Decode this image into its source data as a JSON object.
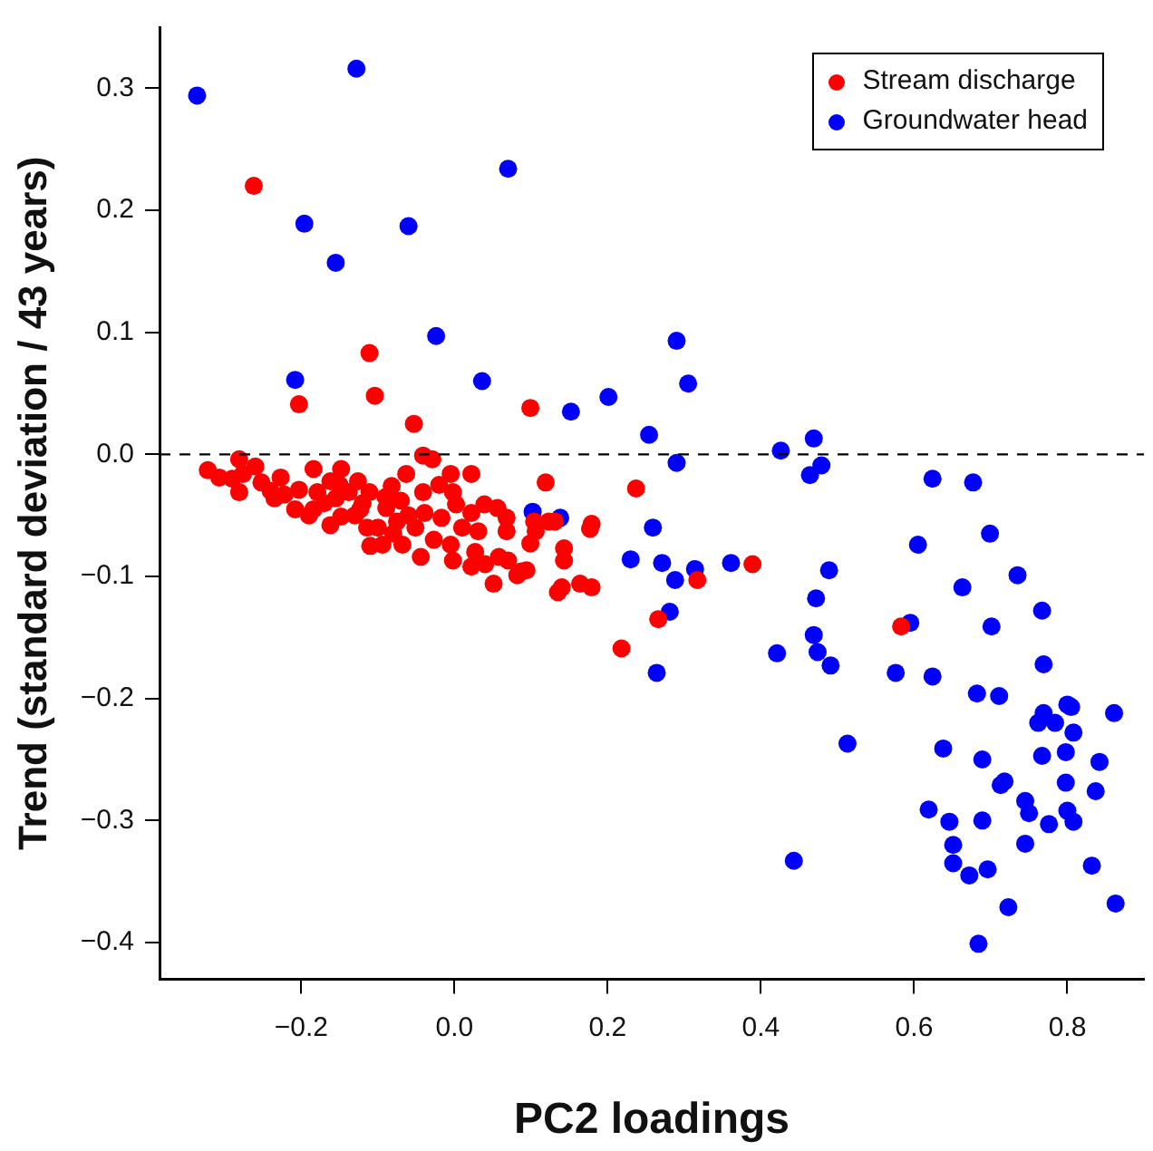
{
  "chart_data": {
    "type": "scatter",
    "xlabel": "PC2 loadings",
    "ylabel": "Trend (standard deviation / 43 years)",
    "xlim": [
      -0.385,
      0.9
    ],
    "ylim": [
      -0.43,
      0.35
    ],
    "xticks": [
      {
        "value": -0.2,
        "label": "−0.2"
      },
      {
        "value": 0,
        "label": "0.0"
      },
      {
        "value": 0.2,
        "label": "0.2"
      },
      {
        "value": 0.4,
        "label": "0.4"
      },
      {
        "value": 0.6,
        "label": "0.6"
      },
      {
        "value": 0.8,
        "label": "0.8"
      }
    ],
    "yticks": [
      {
        "value": -0.4,
        "label": "−0.4"
      },
      {
        "value": -0.3,
        "label": "−0.3"
      },
      {
        "value": -0.2,
        "label": "−0.2"
      },
      {
        "value": -0.1,
        "label": "−0.1"
      },
      {
        "value": 0,
        "label": "0.0"
      },
      {
        "value": 0.1,
        "label": "0.1"
      },
      {
        "value": 0.2,
        "label": "0.2"
      },
      {
        "value": 0.3,
        "label": "0.3"
      }
    ],
    "grid": false,
    "legend": "top right",
    "marker": "circle",
    "ref_lines": [
      {
        "axis": "y",
        "value": 0,
        "line_style": "dashed",
        "color": "#000000"
      }
    ],
    "series": [
      {
        "name": "Stream discharge",
        "color": "#ff0000",
        "x": [
          -0.262,
          -0.111,
          -0.203,
          -0.104,
          -0.053,
          0.099,
          0.119,
          0.237,
          0.389,
          0.317,
          0.266,
          0.218,
          0.583,
          -0.322,
          -0.307,
          -0.281,
          -0.276,
          -0.281,
          -0.252,
          -0.227,
          -0.222,
          -0.235,
          -0.184,
          -0.203,
          -0.208,
          -0.179,
          -0.184,
          -0.162,
          -0.148,
          -0.155,
          -0.162,
          -0.138,
          -0.126,
          -0.123,
          -0.114,
          -0.111,
          -0.148,
          -0.089,
          -0.082,
          -0.094,
          -0.075,
          -0.07,
          -0.063,
          -0.068,
          -0.041,
          -0.029,
          -0.041,
          -0.039,
          -0.051,
          -0.044,
          -0.027,
          -0.017,
          -0.005,
          -0.002,
          0.002,
          -0.005,
          -0.002,
          0.022,
          0.022,
          0.022,
          0.031,
          0.027,
          0.039,
          0.056,
          0.051,
          0.068,
          0.068,
          0.058,
          0.07,
          0.087,
          0.082,
          0.094,
          0.099,
          0.106,
          0.104,
          0.123,
          0.131,
          0.143,
          0.143,
          0.14,
          0.135,
          0.164,
          0.179,
          0.179,
          0.177,
          -0.19,
          -0.17,
          -0.13,
          -0.1,
          -0.08,
          -0.06,
          -0.12,
          -0.09,
          -0.15,
          -0.02,
          0.01,
          -0.11,
          0.04,
          -0.26,
          -0.24,
          -0.29
        ],
        "values": [
          0.22,
          0.083,
          0.041,
          0.048,
          0.025,
          0.038,
          -0.023,
          -0.028,
          -0.09,
          -0.103,
          -0.135,
          -0.159,
          -0.141,
          -0.013,
          -0.019,
          -0.004,
          -0.016,
          -0.031,
          -0.023,
          -0.019,
          -0.033,
          -0.036,
          -0.012,
          -0.029,
          -0.045,
          -0.031,
          -0.045,
          -0.022,
          -0.012,
          -0.036,
          -0.058,
          -0.031,
          -0.022,
          -0.045,
          -0.06,
          -0.031,
          -0.051,
          -0.044,
          -0.026,
          -0.074,
          -0.055,
          -0.038,
          -0.016,
          -0.074,
          -0.001,
          -0.004,
          -0.031,
          -0.048,
          -0.06,
          -0.084,
          -0.07,
          -0.052,
          -0.016,
          -0.031,
          -0.041,
          -0.074,
          -0.087,
          -0.016,
          -0.048,
          -0.092,
          -0.063,
          -0.08,
          -0.041,
          -0.044,
          -0.106,
          -0.052,
          -0.063,
          -0.084,
          -0.087,
          -0.096,
          -0.099,
          -0.095,
          -0.073,
          -0.063,
          -0.055,
          -0.055,
          -0.055,
          -0.077,
          -0.087,
          -0.109,
          -0.113,
          -0.106,
          -0.109,
          -0.057,
          -0.061,
          -0.05,
          -0.04,
          -0.05,
          -0.06,
          -0.065,
          -0.05,
          -0.04,
          -0.035,
          -0.025,
          -0.025,
          -0.06,
          -0.075,
          -0.09,
          -0.01,
          -0.03,
          -0.02
        ]
      },
      {
        "name": "Groundwater head",
        "color": "#0000ff",
        "x": [
          -0.336,
          -0.128,
          0.07,
          -0.196,
          -0.06,
          -0.155,
          -0.024,
          -0.208,
          0.036,
          0.152,
          0.201,
          0.254,
          0.29,
          0.305,
          0.29,
          0.426,
          0.469,
          0.479,
          0.464,
          0.624,
          0.677,
          0.605,
          0.699,
          0.735,
          0.663,
          0.489,
          0.472,
          0.361,
          0.314,
          0.288,
          0.281,
          0.595,
          0.701,
          0.767,
          0.469,
          0.474,
          0.491,
          0.421,
          0.576,
          0.624,
          0.769,
          0.682,
          0.711,
          0.861,
          0.8,
          0.805,
          0.769,
          0.762,
          0.784,
          0.808,
          0.513,
          0.638,
          0.689,
          0.767,
          0.798,
          0.842,
          0.713,
          0.718,
          0.798,
          0.837,
          0.745,
          0.75,
          0.619,
          0.646,
          0.689,
          0.776,
          0.8,
          0.808,
          0.651,
          0.745,
          0.443,
          0.651,
          0.672,
          0.696,
          0.832,
          0.723,
          0.863,
          0.684,
          0.102,
          0.138,
          0.259,
          0.23,
          0.271,
          0.264
        ],
        "values": [
          0.294,
          0.316,
          0.234,
          0.189,
          0.187,
          0.157,
          0.097,
          0.061,
          0.06,
          0.035,
          0.047,
          0.016,
          0.093,
          0.058,
          -0.007,
          0.003,
          0.013,
          -0.009,
          -0.017,
          -0.02,
          -0.023,
          -0.074,
          -0.065,
          -0.099,
          -0.109,
          -0.095,
          -0.118,
          -0.089,
          -0.094,
          -0.103,
          -0.129,
          -0.138,
          -0.141,
          -0.128,
          -0.148,
          -0.162,
          -0.173,
          -0.163,
          -0.179,
          -0.182,
          -0.172,
          -0.196,
          -0.198,
          -0.212,
          -0.205,
          -0.207,
          -0.212,
          -0.22,
          -0.22,
          -0.228,
          -0.237,
          -0.241,
          -0.25,
          -0.247,
          -0.244,
          -0.252,
          -0.271,
          -0.268,
          -0.269,
          -0.276,
          -0.284,
          -0.294,
          -0.291,
          -0.301,
          -0.3,
          -0.303,
          -0.292,
          -0.301,
          -0.32,
          -0.319,
          -0.333,
          -0.335,
          -0.345,
          -0.34,
          -0.337,
          -0.371,
          -0.368,
          -0.401,
          -0.047,
          -0.052,
          -0.06,
          -0.086,
          -0.089,
          -0.179
        ]
      }
    ]
  }
}
